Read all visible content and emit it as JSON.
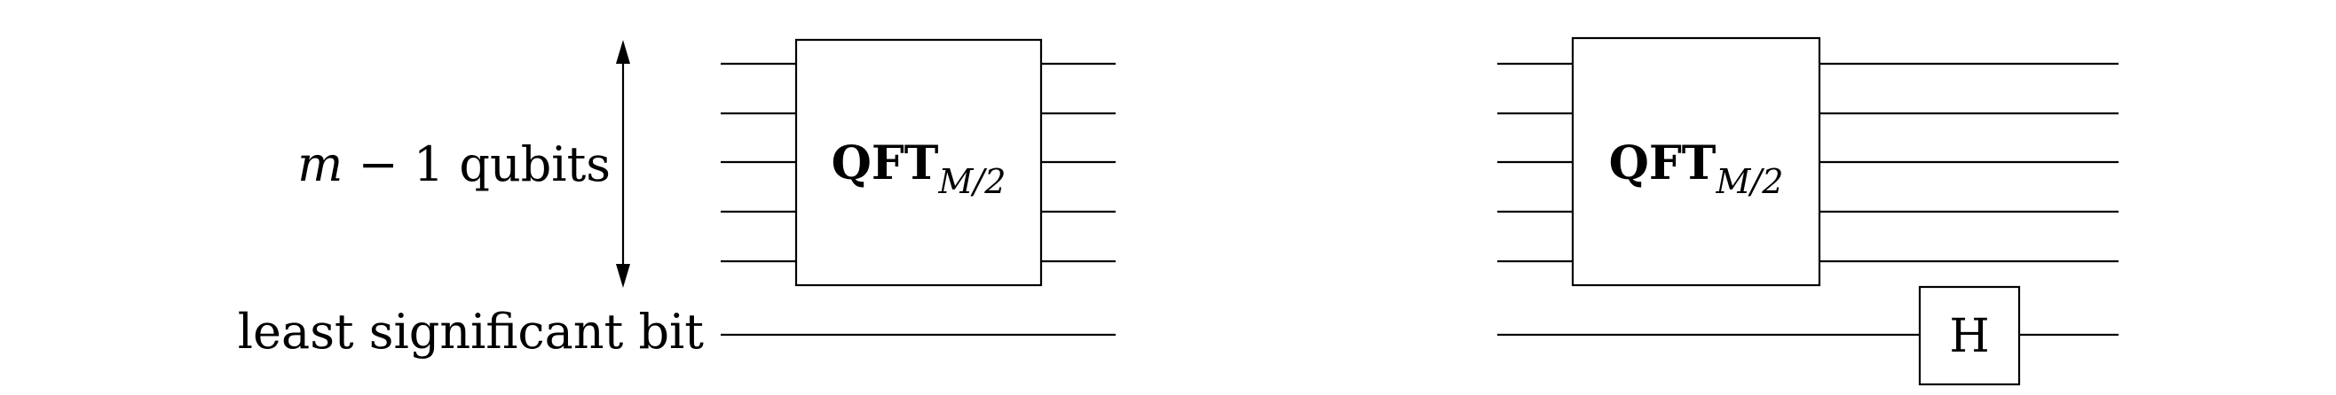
{
  "left_circuit": {
    "register_label_var": "m",
    "register_label_rest": " − 1 qubits",
    "lsb_label": "least significant bit",
    "gate_main": "QFT",
    "gate_subscript": "M/2"
  },
  "right_circuit": {
    "gate_main": "QFT",
    "gate_subscript": "M/2",
    "hadamard_label": "H"
  }
}
